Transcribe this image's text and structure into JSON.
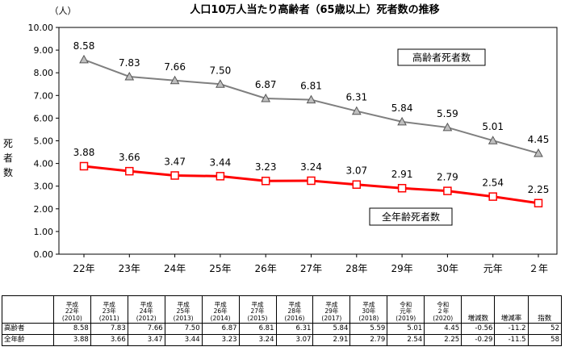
{
  "chart_data": {
    "type": "line",
    "title": "人口10万人当たり高齢者（65歳以上）死者数の推移",
    "y_unit": "（人）",
    "ylabel": "死者数",
    "ylim": [
      0,
      10
    ],
    "y_ticks": [
      "0.00",
      "1.00",
      "2.00",
      "3.00",
      "4.00",
      "5.00",
      "6.00",
      "7.00",
      "8.00",
      "9.00",
      "10.00"
    ],
    "categories": [
      "22年",
      "23年",
      "24年",
      "25年",
      "26年",
      "27年",
      "28年",
      "29年",
      "30年",
      "元年",
      "２年"
    ],
    "grid": false,
    "series": [
      {
        "name": "高齢者死者数",
        "values": [
          8.58,
          7.83,
          7.66,
          7.5,
          6.87,
          6.81,
          6.31,
          5.84,
          5.59,
          5.01,
          4.45
        ],
        "labels": [
          "8.58",
          "7.83",
          "7.66",
          "7.50",
          "6.87",
          "6.81",
          "6.31",
          "5.84",
          "5.59",
          "5.01",
          "4.45"
        ],
        "color": "#7f7f7f",
        "marker": "triangle"
      },
      {
        "name": "全年齢死者数",
        "values": [
          3.88,
          3.66,
          3.47,
          3.44,
          3.23,
          3.24,
          3.07,
          2.91,
          2.79,
          2.54,
          2.25
        ],
        "labels": [
          "3.88",
          "3.66",
          "3.47",
          "3.44",
          "3.23",
          "3.24",
          "3.07",
          "2.91",
          "2.79",
          "2.54",
          "2.25"
        ],
        "color": "#ff0000",
        "marker": "square"
      }
    ]
  },
  "table": {
    "period_headers": [
      [
        "平成",
        "22年",
        "(2010)"
      ],
      [
        "平成",
        "23年",
        "(2011)"
      ],
      [
        "平成",
        "24年",
        "(2012)"
      ],
      [
        "平成",
        "25年",
        "(2013)"
      ],
      [
        "平成",
        "26年",
        "(2014)"
      ],
      [
        "平成",
        "27年",
        "(2015)"
      ],
      [
        "平成",
        "28年",
        "(2016)"
      ],
      [
        "平成",
        "29年",
        "(2017)"
      ],
      [
        "平成",
        "30年",
        "(2018)"
      ],
      [
        "令和",
        "元年",
        "(2019)"
      ],
      [
        "令和",
        "２年",
        "(2020)"
      ]
    ],
    "extra_headers": [
      "増減数",
      "増減率",
      "指数"
    ],
    "rows": [
      {
        "label": "高齢者",
        "values": [
          "8.58",
          "7.83",
          "7.66",
          "7.50",
          "6.87",
          "6.81",
          "6.31",
          "5.84",
          "5.59",
          "5.01",
          "4.45"
        ],
        "extra": [
          "-0.56",
          "-11.2",
          "52"
        ]
      },
      {
        "label": "全年齢",
        "values": [
          "3.88",
          "3.66",
          "3.47",
          "3.44",
          "3.23",
          "3.24",
          "3.07",
          "2.91",
          "2.79",
          "2.54",
          "2.25"
        ],
        "extra": [
          "-0.29",
          "-11.5",
          "58"
        ]
      }
    ]
  }
}
